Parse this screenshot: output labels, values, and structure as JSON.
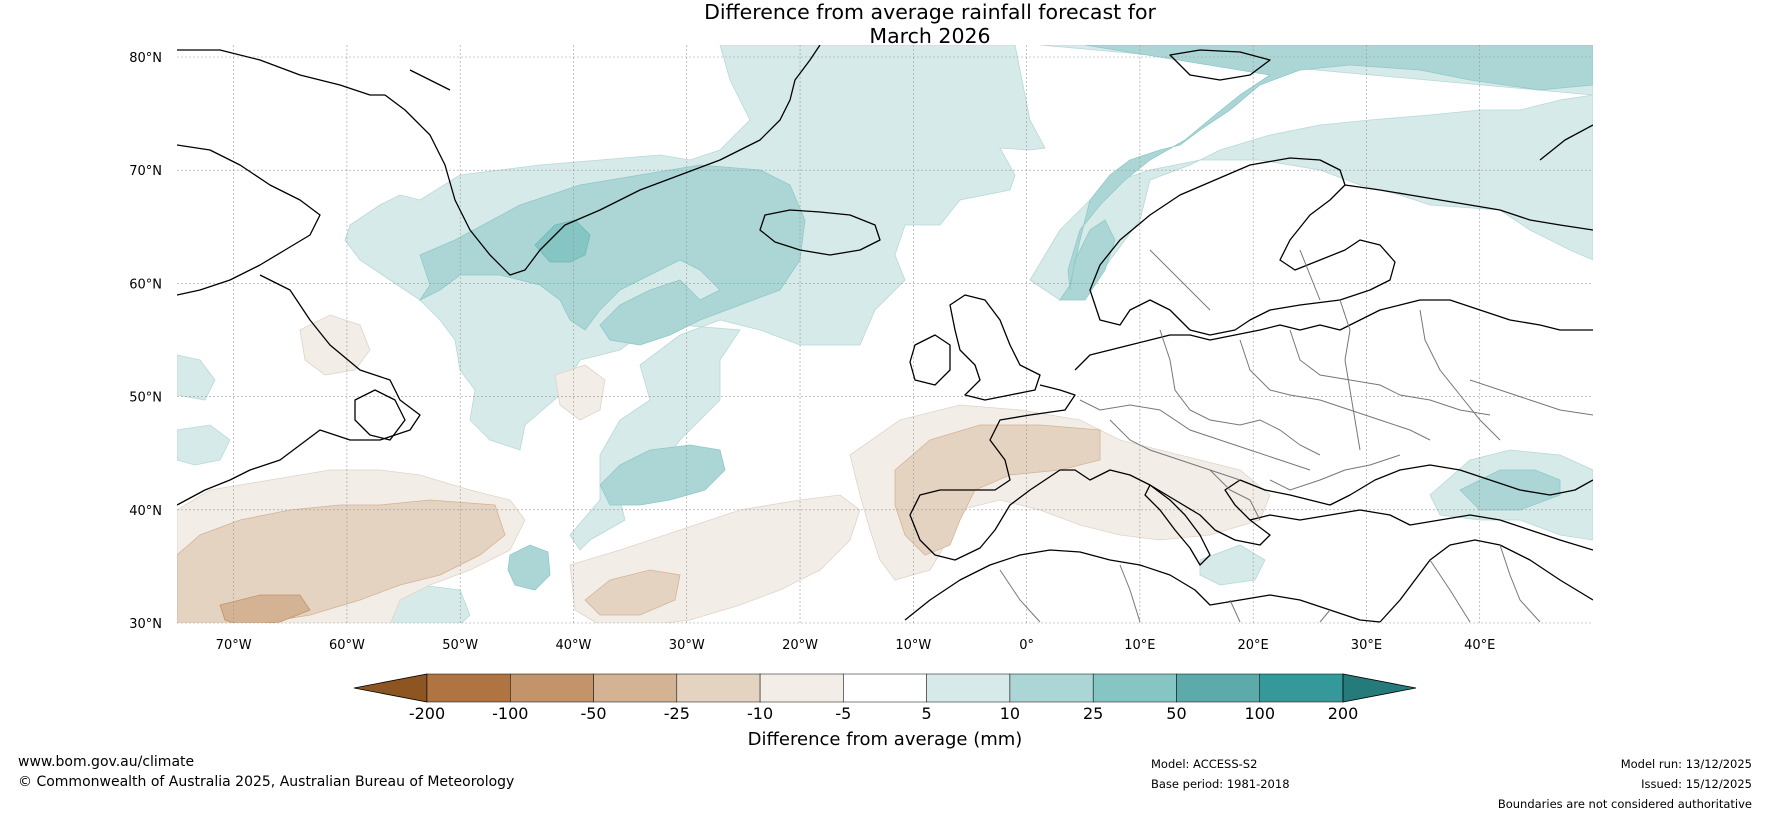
{
  "title": {
    "line1": "Difference from average rainfall forecast for",
    "line2": "March 2026"
  },
  "map": {
    "lat_labels": [
      "80°N",
      "70°N",
      "60°N",
      "50°N",
      "40°N",
      "30°N"
    ],
    "lat_values": [
      80,
      70,
      60,
      50,
      40,
      30
    ],
    "lon_labels": [
      "70°W",
      "60°W",
      "50°W",
      "40°W",
      "30°W",
      "20°W",
      "10°W",
      "0°",
      "10°E",
      "20°E",
      "30°E",
      "40°E"
    ],
    "lon_values": [
      -70,
      -60,
      -50,
      -40,
      -30,
      -20,
      -10,
      0,
      10,
      20,
      30,
      40
    ],
    "lon_range": [
      -75,
      50
    ],
    "lat_range": [
      30,
      81
    ]
  },
  "colorbar": {
    "title": "Difference from average (mm)",
    "ticks": [
      "-200",
      "-100",
      "-50",
      "-25",
      "-10",
      "-5",
      "5",
      "10",
      "25",
      "50",
      "100",
      "200"
    ],
    "colors": {
      "below_min": "#8c5522",
      "bins": [
        "#b07443",
        "#c3946a",
        "#d3b394",
        "#e5d3c2",
        "#f2ede7",
        "#ffffff",
        "#d6eaea",
        "#acd6d6",
        "#85c5c4",
        "#5cabaa",
        "#35999a"
      ],
      "above_max": "#257a7a"
    }
  },
  "footer": {
    "website": "www.bom.gov.au/climate",
    "copyright": "© Commonwealth of Australia 2025, Australian Bureau of Meteorology",
    "model": "Model: ACCESS-S2",
    "base_period": "Base period: 1981-2018",
    "model_run": "Model run: 13/12/2025",
    "issued": "Issued: 15/12/2025",
    "disclaimer": "Boundaries are not considered authoritative"
  }
}
